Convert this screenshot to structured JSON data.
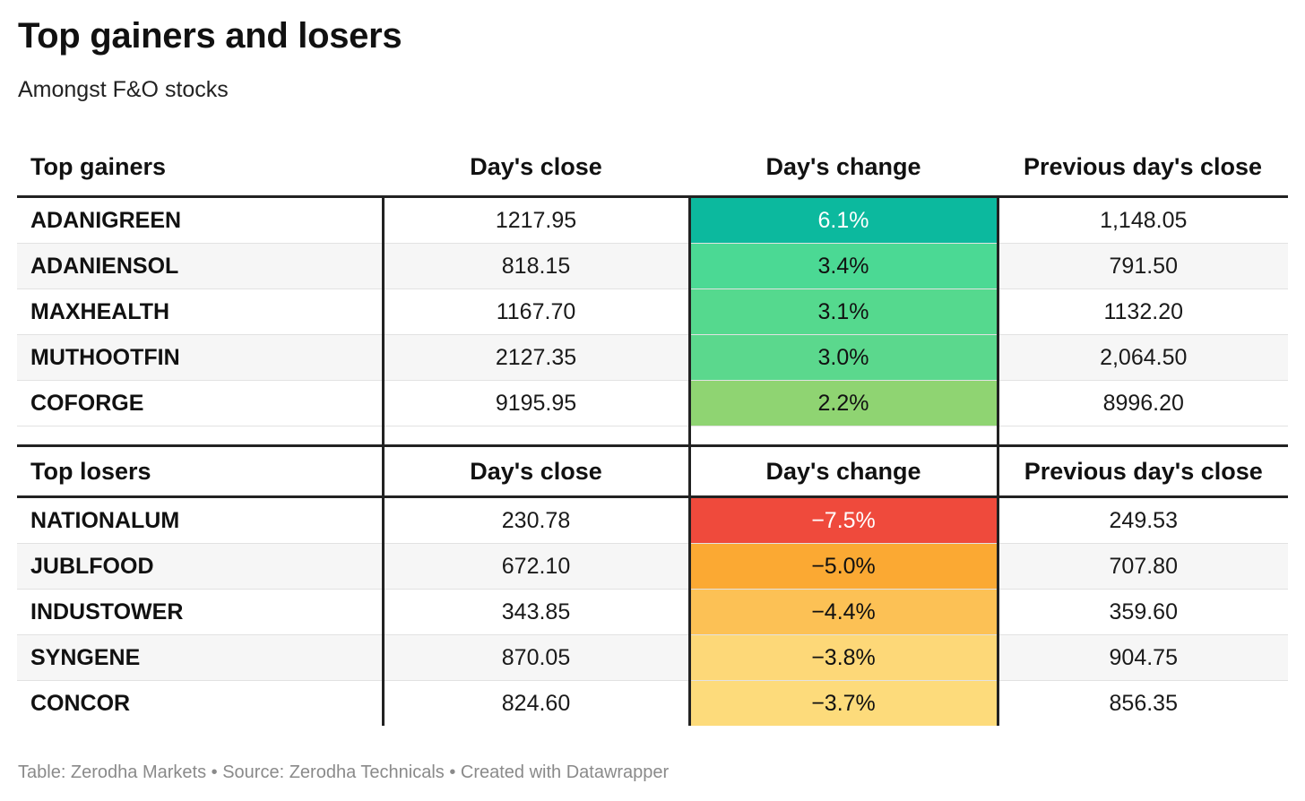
{
  "chart_data": {
    "type": "table",
    "title": "Top gainers and losers",
    "subtitle": "Amongst F&O stocks",
    "columns": [
      "Day's close",
      "Day's change",
      "Previous day's close"
    ],
    "sections": [
      {
        "label": "Top gainers",
        "rows": [
          {
            "name": "ADANIGREEN",
            "close": "1217.95",
            "change": "6.1%",
            "change_value": 6.1,
            "prev": "1,148.05",
            "color": "#0cb99e",
            "text_color": "#ffffff"
          },
          {
            "name": "ADANIENSOL",
            "close": "818.15",
            "change": "3.4%",
            "change_value": 3.4,
            "prev": "791.50",
            "color": "#4bd994",
            "text_color": "#111111"
          },
          {
            "name": "MAXHEALTH",
            "close": "1167.70",
            "change": "3.1%",
            "change_value": 3.1,
            "prev": "1132.20",
            "color": "#55d98e",
            "text_color": "#111111"
          },
          {
            "name": "MUTHOOTFIN",
            "close": "2127.35",
            "change": "3.0%",
            "change_value": 3.0,
            "prev": "2,064.50",
            "color": "#5bd88d",
            "text_color": "#111111"
          },
          {
            "name": "COFORGE",
            "close": "9195.95",
            "change": "2.2%",
            "change_value": 2.2,
            "prev": "8996.20",
            "color": "#8fd472",
            "text_color": "#111111"
          }
        ]
      },
      {
        "label": "Top losers",
        "rows": [
          {
            "name": "NATIONALUM",
            "close": "230.78",
            "change": "−7.5%",
            "change_value": -7.5,
            "prev": "249.53",
            "color": "#ef4a3c",
            "text_color": "#ffffff"
          },
          {
            "name": "JUBLFOOD",
            "close": "672.10",
            "change": "−5.0%",
            "change_value": -5.0,
            "prev": "707.80",
            "color": "#fba933",
            "text_color": "#111111"
          },
          {
            "name": "INDUSTOWER",
            "close": "343.85",
            "change": "−4.4%",
            "change_value": -4.4,
            "prev": "359.60",
            "color": "#fcc155",
            "text_color": "#111111"
          },
          {
            "name": "SYNGENE",
            "close": "870.05",
            "change": "−3.8%",
            "change_value": -3.8,
            "prev": "904.75",
            "color": "#fdd878",
            "text_color": "#111111"
          },
          {
            "name": "CONCOR",
            "close": "824.60",
            "change": "−3.7%",
            "change_value": -3.7,
            "prev": "856.35",
            "color": "#fddb7b",
            "text_color": "#111111"
          }
        ]
      }
    ]
  },
  "footer": "Table: Zerodha Markets • Source: Zerodha Technicals • Created with Datawrapper"
}
